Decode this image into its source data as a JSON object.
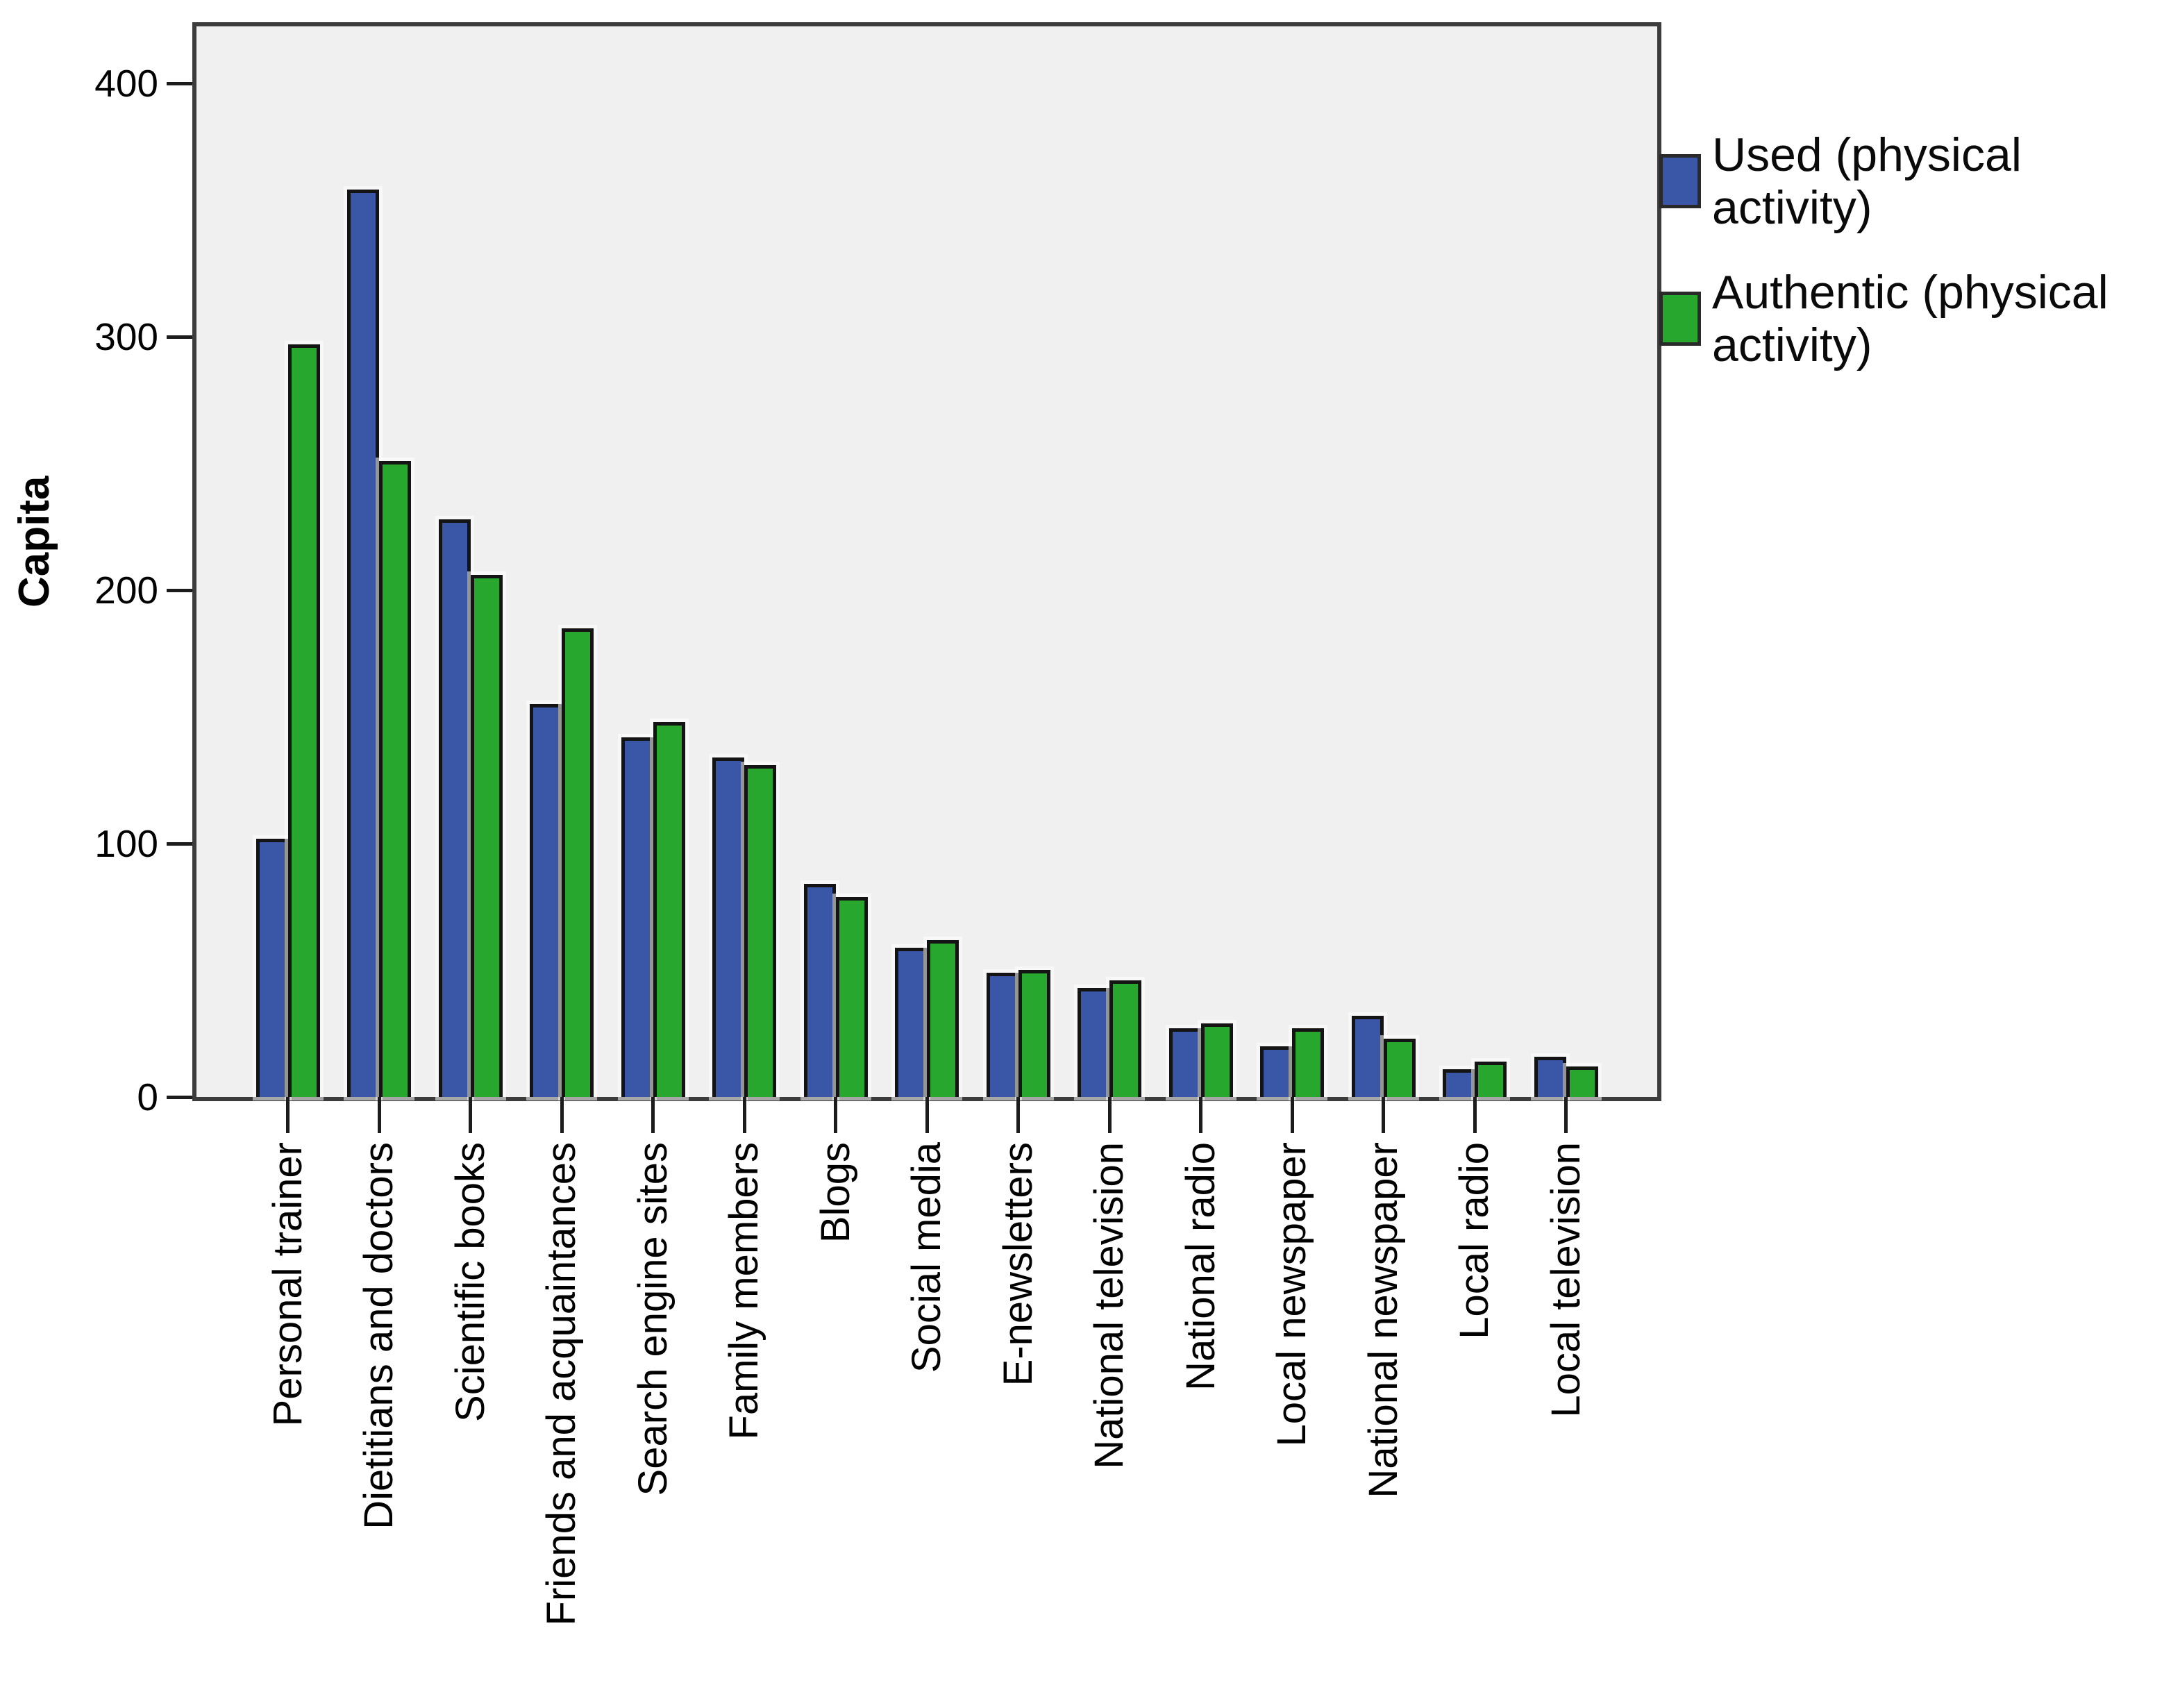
{
  "chart_data": {
    "type": "bar",
    "title": "",
    "xlabel": "",
    "ylabel": "Capita",
    "ylim": [
      0,
      422
    ],
    "yticks": [
      0,
      100,
      200,
      300,
      400
    ],
    "grid": false,
    "plot_background": "#F0F0F0",
    "legend_position": "right-top",
    "categories": [
      "Personal trainer",
      "Dietitians and doctors",
      "Scientific books",
      "Friends and acquaintances",
      "Search engine sites",
      "Family members",
      "Blogs",
      "Social media",
      "E-newsletters",
      "National television",
      "National radio",
      "Local newspaper",
      "National newspaper",
      "Local radio",
      "Local television"
    ],
    "series": [
      {
        "name": "Used (physical activity)",
        "lines": [
          "Used (physical",
          "activity)"
        ],
        "color": "#3A56A7",
        "values": [
          102,
          358,
          228,
          155,
          142,
          134,
          84,
          59,
          49,
          43,
          27,
          20,
          32,
          11,
          16
        ]
      },
      {
        "name": "Authentic (physical activity)",
        "lines": [
          "Authentic (physical",
          "activity)"
        ],
        "color": "#28A72F",
        "values": [
          297,
          251,
          206,
          185,
          148,
          131,
          79,
          62,
          50,
          46,
          29,
          27,
          23,
          14,
          12
        ]
      }
    ]
  }
}
